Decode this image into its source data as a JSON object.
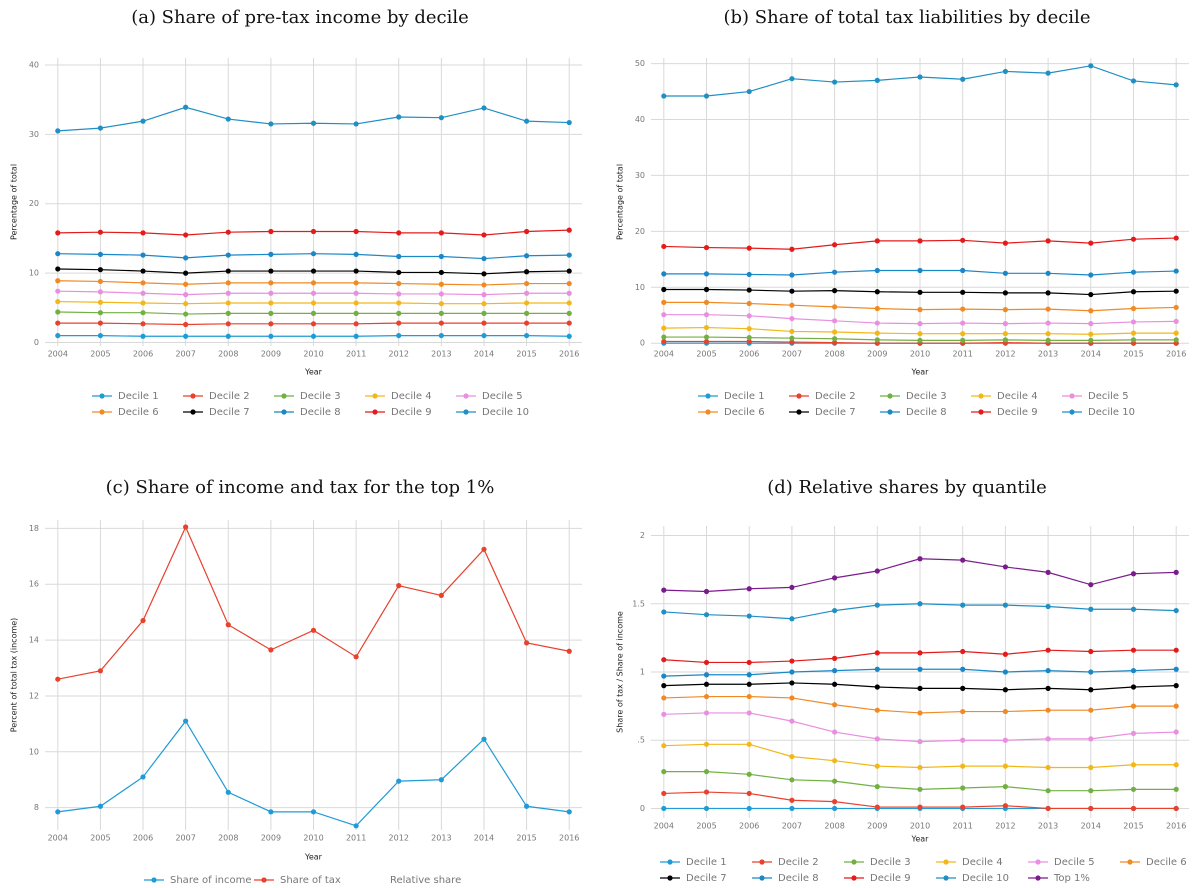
{
  "chart_data": [
    {
      "type": "line",
      "title": "(a) Share of pre-tax income by decile",
      "xlabel": "Year",
      "ylabel": "Percentage of total",
      "x": [
        2004,
        2005,
        2006,
        2007,
        2008,
        2009,
        2010,
        2011,
        2012,
        2013,
        2014,
        2015,
        2016
      ],
      "xlim": [
        2003.7,
        2016.3
      ],
      "xticks": [
        2004,
        2005,
        2006,
        2007,
        2008,
        2009,
        2010,
        2011,
        2012,
        2013,
        2014,
        2015,
        2016
      ],
      "ylim": [
        -0.5,
        41
      ],
      "yticks": [
        0,
        10,
        20,
        30,
        40
      ],
      "grid": true,
      "series": [
        {
          "name": "Decile 1",
          "color": "#1f9bd6",
          "values": [
            1.0,
            1.0,
            0.9,
            0.9,
            0.9,
            0.9,
            0.9,
            0.9,
            1.0,
            1.0,
            1.0,
            1.0,
            0.9
          ]
        },
        {
          "name": "Decile 2",
          "color": "#e8412e",
          "values": [
            2.8,
            2.8,
            2.7,
            2.6,
            2.7,
            2.7,
            2.7,
            2.7,
            2.8,
            2.8,
            2.8,
            2.8,
            2.8
          ]
        },
        {
          "name": "Decile 3",
          "color": "#72b043",
          "values": [
            4.4,
            4.3,
            4.3,
            4.1,
            4.2,
            4.2,
            4.2,
            4.2,
            4.2,
            4.2,
            4.2,
            4.2,
            4.2
          ]
        },
        {
          "name": "Decile 4",
          "color": "#f3b71a",
          "values": [
            5.9,
            5.8,
            5.7,
            5.6,
            5.7,
            5.7,
            5.7,
            5.7,
            5.7,
            5.6,
            5.6,
            5.7,
            5.7
          ]
        },
        {
          "name": "Decile 5",
          "color": "#e98fe0",
          "values": [
            7.4,
            7.3,
            7.1,
            6.9,
            7.1,
            7.1,
            7.1,
            7.1,
            7.0,
            7.0,
            6.9,
            7.1,
            7.1
          ]
        },
        {
          "name": "Decile 6",
          "color": "#f08a24",
          "values": [
            8.9,
            8.8,
            8.6,
            8.4,
            8.6,
            8.6,
            8.6,
            8.6,
            8.5,
            8.4,
            8.3,
            8.5,
            8.5
          ]
        },
        {
          "name": "Decile 7",
          "color": "#000000",
          "values": [
            10.6,
            10.5,
            10.3,
            10.0,
            10.3,
            10.3,
            10.3,
            10.3,
            10.1,
            10.1,
            9.9,
            10.2,
            10.3
          ]
        },
        {
          "name": "Decile 8",
          "color": "#1a87c7",
          "values": [
            12.8,
            12.7,
            12.6,
            12.2,
            12.6,
            12.7,
            12.8,
            12.7,
            12.4,
            12.4,
            12.1,
            12.5,
            12.6
          ]
        },
        {
          "name": "Decile 9",
          "color": "#e31b1b",
          "values": [
            15.8,
            15.9,
            15.8,
            15.5,
            15.9,
            16.0,
            16.0,
            16.0,
            15.8,
            15.8,
            15.5,
            16.0,
            16.2
          ]
        },
        {
          "name": "Decile 10",
          "color": "#1f8fc4",
          "values": [
            30.5,
            30.9,
            31.9,
            33.9,
            32.2,
            31.5,
            31.6,
            31.5,
            32.5,
            32.4,
            33.8,
            31.9,
            31.7
          ]
        }
      ]
    },
    {
      "type": "line",
      "title": "(b) Share of total tax liabilities by decile",
      "xlabel": "Year",
      "ylabel": "Percentage of total",
      "x": [
        2004,
        2005,
        2006,
        2007,
        2008,
        2009,
        2010,
        2011,
        2012,
        2013,
        2014,
        2015,
        2016
      ],
      "xlim": [
        2003.7,
        2016.3
      ],
      "xticks": [
        2004,
        2005,
        2006,
        2007,
        2008,
        2009,
        2010,
        2011,
        2012,
        2013,
        2014,
        2015,
        2016
      ],
      "ylim": [
        -0.5,
        51
      ],
      "yticks": [
        0,
        10,
        20,
        30,
        40,
        50
      ],
      "grid": true,
      "series": [
        {
          "name": "Decile 1",
          "color": "#1f9bd6",
          "values": [
            0,
            0,
            0,
            0,
            0,
            0,
            0,
            0,
            0,
            0,
            0,
            0,
            0
          ]
        },
        {
          "name": "Decile 2",
          "color": "#e8412e",
          "values": [
            0.3,
            0.3,
            0.3,
            0.2,
            0.1,
            0.0,
            0.0,
            0.0,
            0.1,
            0.0,
            0.0,
            0.0,
            0.0
          ]
        },
        {
          "name": "Decile 3",
          "color": "#72b043",
          "values": [
            1.1,
            1.1,
            1.0,
            0.9,
            0.8,
            0.6,
            0.5,
            0.5,
            0.6,
            0.5,
            0.5,
            0.6,
            0.6
          ]
        },
        {
          "name": "Decile 4",
          "color": "#f3b71a",
          "values": [
            2.7,
            2.8,
            2.6,
            2.1,
            2.0,
            1.8,
            1.7,
            1.7,
            1.7,
            1.7,
            1.6,
            1.8,
            1.8
          ]
        },
        {
          "name": "Decile 5",
          "color": "#e98fe0",
          "values": [
            5.1,
            5.1,
            4.9,
            4.4,
            4.0,
            3.6,
            3.5,
            3.6,
            3.5,
            3.6,
            3.5,
            3.8,
            3.9
          ]
        },
        {
          "name": "Decile 6",
          "color": "#f08a24",
          "values": [
            7.3,
            7.3,
            7.1,
            6.8,
            6.5,
            6.2,
            6.0,
            6.1,
            6.0,
            6.1,
            5.8,
            6.2,
            6.4
          ]
        },
        {
          "name": "Decile 7",
          "color": "#000000",
          "values": [
            9.6,
            9.6,
            9.5,
            9.3,
            9.4,
            9.2,
            9.1,
            9.1,
            9.0,
            9.0,
            8.7,
            9.2,
            9.3
          ]
        },
        {
          "name": "Decile 8",
          "color": "#1a87c7",
          "values": [
            12.4,
            12.4,
            12.3,
            12.2,
            12.7,
            13.0,
            13.0,
            13.0,
            12.5,
            12.5,
            12.2,
            12.7,
            12.9
          ]
        },
        {
          "name": "Decile 9",
          "color": "#e31b1b",
          "values": [
            17.3,
            17.1,
            17.0,
            16.8,
            17.6,
            18.3,
            18.3,
            18.4,
            17.9,
            18.3,
            17.9,
            18.6,
            18.8
          ]
        },
        {
          "name": "Decile 10",
          "color": "#1f8fc4",
          "values": [
            44.2,
            44.2,
            45.0,
            47.3,
            46.7,
            47.0,
            47.6,
            47.2,
            48.6,
            48.3,
            49.6,
            46.9,
            46.2
          ]
        }
      ]
    },
    {
      "type": "line",
      "title": "(c) Share of income and tax for the top 1%",
      "xlabel": "Year",
      "ylabel": "Percent of total tax (income)",
      "x": [
        2004,
        2005,
        2006,
        2007,
        2008,
        2009,
        2010,
        2011,
        2012,
        2013,
        2014,
        2015,
        2016
      ],
      "xlim": [
        2003.7,
        2016.3
      ],
      "xticks": [
        2004,
        2005,
        2006,
        2007,
        2008,
        2009,
        2010,
        2011,
        2012,
        2013,
        2014,
        2015,
        2016
      ],
      "ylim": [
        7.2,
        18.3
      ],
      "yticks": [
        8,
        10,
        12,
        14,
        16,
        18
      ],
      "grid": true,
      "series": [
        {
          "name": "Share of income",
          "color": "#1f9bd6",
          "values": [
            7.85,
            8.05,
            9.1,
            11.1,
            8.55,
            7.85,
            7.85,
            7.35,
            8.95,
            9.0,
            10.45,
            8.05,
            7.85
          ]
        },
        {
          "name": "Share of tax",
          "color": "#e8412e",
          "values": [
            12.6,
            12.9,
            14.7,
            18.05,
            14.55,
            13.65,
            14.35,
            13.4,
            15.95,
            15.6,
            17.25,
            13.9,
            13.6
          ]
        },
        {
          "name": "Relative share",
          "color": null,
          "values": [
            null,
            null,
            null,
            null,
            null,
            null,
            null,
            null,
            null,
            null,
            null,
            null,
            null
          ]
        }
      ]
    },
    {
      "type": "line",
      "title": "(d) Relative shares by quantile",
      "xlabel": "Year",
      "ylabel": "Share of tax / Share of income",
      "x": [
        2004,
        2005,
        2006,
        2007,
        2008,
        2009,
        2010,
        2011,
        2012,
        2013,
        2014,
        2015,
        2016
      ],
      "xlim": [
        2003.7,
        2016.3
      ],
      "xticks": [
        2004,
        2005,
        2006,
        2007,
        2008,
        2009,
        2010,
        2011,
        2012,
        2013,
        2014,
        2015,
        2016
      ],
      "ylim": [
        -0.07,
        2.07
      ],
      "yticks": [
        0,
        {
          "value": 0.5,
          "label": ".5"
        },
        1,
        1.5,
        2
      ],
      "grid": true,
      "series": [
        {
          "name": "Decile 1",
          "color": "#1f9bd6",
          "values": [
            0,
            0,
            0,
            0,
            0,
            0,
            0,
            0,
            0,
            0,
            0,
            0,
            0
          ]
        },
        {
          "name": "Decile 2",
          "color": "#e8412e",
          "values": [
            0.11,
            0.12,
            0.11,
            0.06,
            0.05,
            0.01,
            0.01,
            0.01,
            0.02,
            0.0,
            0.0,
            0.0,
            0.0
          ]
        },
        {
          "name": "Decile 3",
          "color": "#72b043",
          "values": [
            0.27,
            0.27,
            0.25,
            0.21,
            0.2,
            0.16,
            0.14,
            0.15,
            0.16,
            0.13,
            0.13,
            0.14,
            0.14
          ]
        },
        {
          "name": "Decile 4",
          "color": "#f3b71a",
          "values": [
            0.46,
            0.47,
            0.47,
            0.38,
            0.35,
            0.31,
            0.3,
            0.31,
            0.31,
            0.3,
            0.3,
            0.32,
            0.32
          ]
        },
        {
          "name": "Decile 5",
          "color": "#e98fe0",
          "values": [
            0.69,
            0.7,
            0.7,
            0.64,
            0.56,
            0.51,
            0.49,
            0.5,
            0.5,
            0.51,
            0.51,
            0.55,
            0.56
          ]
        },
        {
          "name": "Decile 6",
          "color": "#f08a24",
          "values": [
            0.81,
            0.82,
            0.82,
            0.81,
            0.76,
            0.72,
            0.7,
            0.71,
            0.71,
            0.72,
            0.72,
            0.75,
            0.75
          ]
        },
        {
          "name": "Decile 7",
          "color": "#000000",
          "values": [
            0.9,
            0.91,
            0.91,
            0.92,
            0.91,
            0.89,
            0.88,
            0.88,
            0.87,
            0.88,
            0.87,
            0.89,
            0.9
          ]
        },
        {
          "name": "Decile 8",
          "color": "#1a87c7",
          "values": [
            0.97,
            0.98,
            0.98,
            1.0,
            1.01,
            1.02,
            1.02,
            1.02,
            1.0,
            1.01,
            1.0,
            1.01,
            1.02
          ]
        },
        {
          "name": "Decile 9",
          "color": "#e31b1b",
          "values": [
            1.09,
            1.07,
            1.07,
            1.08,
            1.1,
            1.14,
            1.14,
            1.15,
            1.13,
            1.16,
            1.15,
            1.16,
            1.16
          ]
        },
        {
          "name": "Decile 10",
          "color": "#1f8fc4",
          "values": [
            1.44,
            1.42,
            1.41,
            1.39,
            1.45,
            1.49,
            1.5,
            1.49,
            1.49,
            1.48,
            1.46,
            1.46,
            1.45
          ]
        },
        {
          "name": "Top 1%",
          "color": "#7b1c8c",
          "values": [
            1.6,
            1.59,
            1.61,
            1.62,
            1.69,
            1.74,
            1.83,
            1.82,
            1.77,
            1.73,
            1.64,
            1.72,
            1.73
          ]
        }
      ]
    }
  ]
}
